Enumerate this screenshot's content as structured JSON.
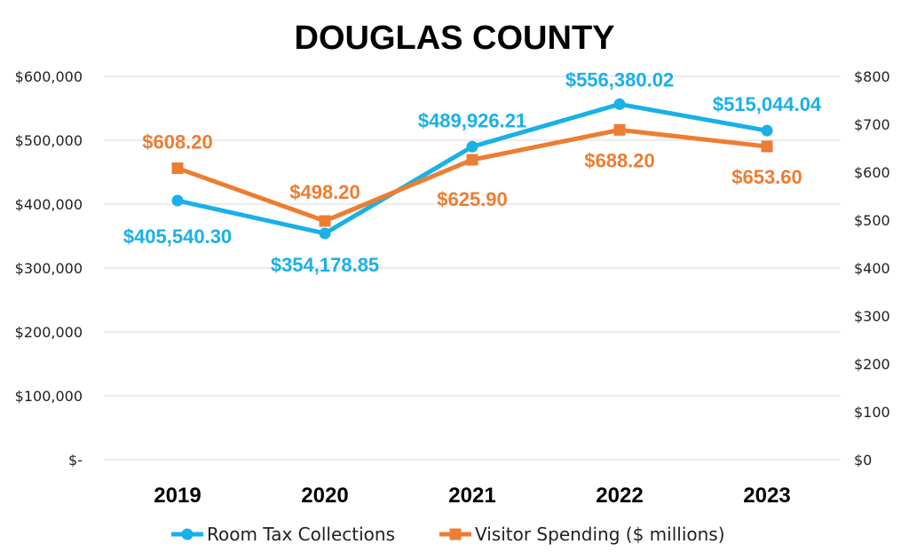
{
  "chart_data": {
    "type": "line",
    "title": "DOUGLAS COUNTY",
    "categories": [
      "2019",
      "2020",
      "2021",
      "2022",
      "2023"
    ],
    "y_left": {
      "range": [
        0,
        600000
      ],
      "ticks": [
        0,
        100000,
        200000,
        300000,
        400000,
        500000,
        600000
      ],
      "tick_labels": [
        "$-",
        "$100,000",
        "$200,000",
        "$300,000",
        "$400,000",
        "$500,000",
        "$600,000"
      ]
    },
    "y_right": {
      "range": [
        0,
        800
      ],
      "ticks": [
        0,
        100,
        200,
        300,
        400,
        500,
        600,
        700,
        800
      ],
      "tick_labels": [
        "$0",
        "$100",
        "$200",
        "$300",
        "$400",
        "$500",
        "$600",
        "$700",
        "$800"
      ]
    },
    "grid": true,
    "legend_position": "bottom",
    "series": [
      {
        "name": "Room Tax Collections",
        "axis": "left",
        "color": "#1ab0e8",
        "marker": "circle",
        "values": [
          405540.3,
          354178.85,
          489926.21,
          556380.02,
          515044.04
        ],
        "labels": [
          "$405,540.30",
          "$354,178.85",
          "$489,926.21",
          "$556,380.02",
          "$515,044.04"
        ]
      },
      {
        "name": "Visitor Spending ($ millions)",
        "axis": "right",
        "color": "#ed7d31",
        "marker": "square",
        "values": [
          608.2,
          498.2,
          625.9,
          688.2,
          653.6
        ],
        "labels": [
          "$608.20",
          "$498.20",
          "$625.90",
          "$688.20",
          "$653.60"
        ]
      }
    ]
  }
}
